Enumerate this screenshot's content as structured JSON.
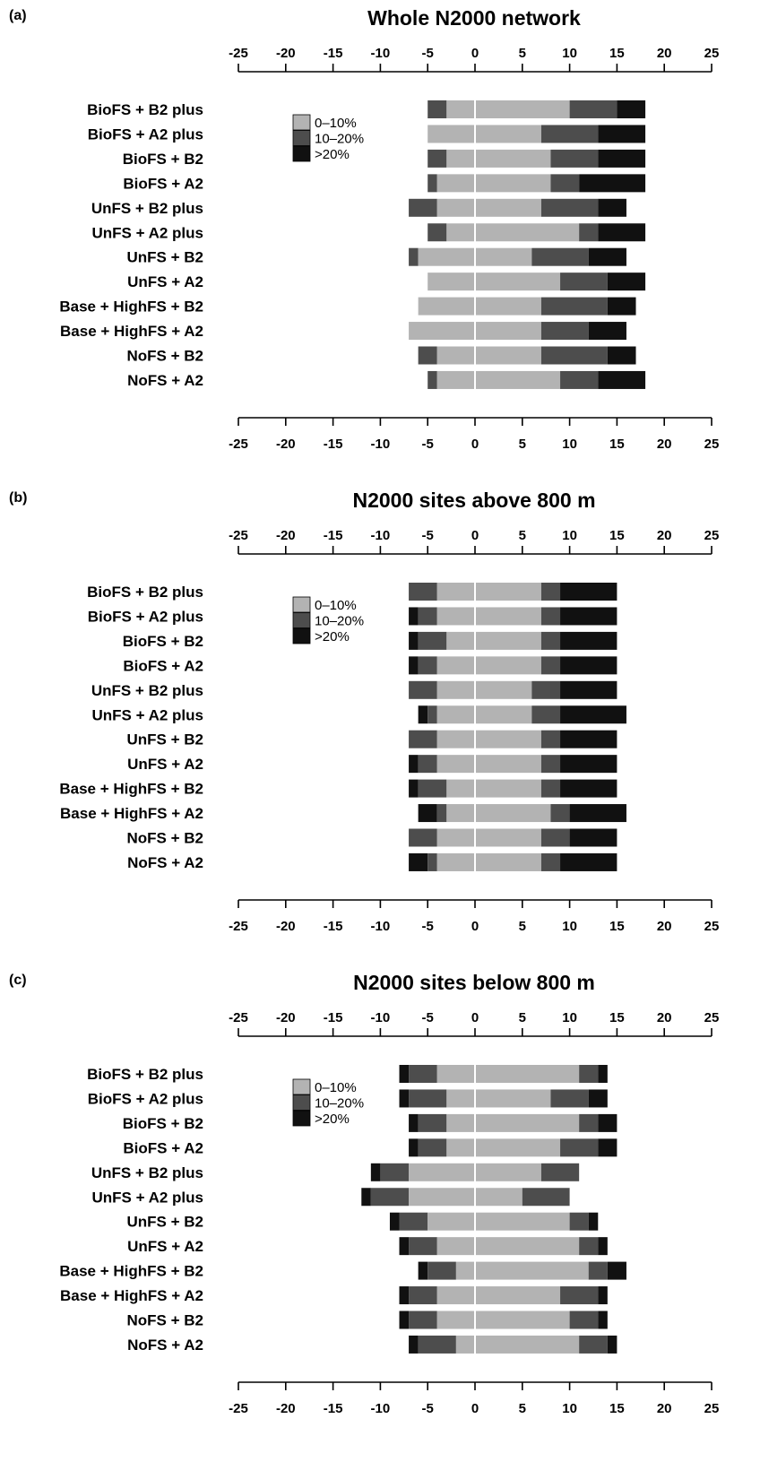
{
  "chart_data": [
    {
      "type": "bar",
      "panel_label": "(a)",
      "title": "Whole N2000 network",
      "xlim": [
        -25,
        25
      ],
      "xticks": [
        "-25",
        "-20",
        "-15",
        "-10",
        "-5",
        "0",
        "5",
        "10",
        "15",
        "20",
        "25"
      ],
      "legend": {
        "placement": "top-left",
        "entries": [
          "0–10%",
          "10–20%",
          ">20%"
        ],
        "colors": [
          "#b3b3b3",
          "#4d4d4d",
          "#111111"
        ]
      },
      "categories": [
        "BioFS + B2 plus",
        "BioFS + A2 plus",
        "BioFS + B2",
        "BioFS + A2",
        "UnFS + B2 plus",
        "UnFS + A2 plus",
        "UnFS + B2",
        "UnFS + A2",
        "Base + HighFS + B2",
        "Base + HighFS + A2",
        "NoFS + B2",
        "NoFS + A2"
      ],
      "bars": [
        {
          "neg": [
            -3,
            -5,
            -5
          ],
          "pos": [
            10,
            15,
            18
          ]
        },
        {
          "neg": [
            -5,
            -5,
            -5
          ],
          "pos": [
            7,
            13,
            18
          ]
        },
        {
          "neg": [
            -3,
            -5,
            -5
          ],
          "pos": [
            8,
            13,
            18
          ]
        },
        {
          "neg": [
            -4,
            -5,
            -5
          ],
          "pos": [
            8,
            11,
            18
          ]
        },
        {
          "neg": [
            -4,
            -7,
            -7
          ],
          "pos": [
            7,
            13,
            16
          ]
        },
        {
          "neg": [
            -3,
            -5,
            -5
          ],
          "pos": [
            11,
            13,
            18
          ]
        },
        {
          "neg": [
            -6,
            -7,
            -7
          ],
          "pos": [
            6,
            12,
            16
          ]
        },
        {
          "neg": [
            -5,
            -5,
            -5
          ],
          "pos": [
            9,
            14,
            18
          ]
        },
        {
          "neg": [
            -6,
            -6,
            -6
          ],
          "pos": [
            7,
            14,
            17
          ]
        },
        {
          "neg": [
            -7,
            -7,
            -7
          ],
          "pos": [
            7,
            12,
            16
          ]
        },
        {
          "neg": [
            -4,
            -6,
            -6
          ],
          "pos": [
            7,
            14,
            17
          ]
        },
        {
          "neg": [
            -4,
            -5,
            -5
          ],
          "pos": [
            9,
            13,
            18
          ]
        }
      ]
    },
    {
      "type": "bar",
      "panel_label": "(b)",
      "title": "N2000 sites above 800 m",
      "xlim": [
        -25,
        25
      ],
      "xticks": [
        "-25",
        "-20",
        "-15",
        "-10",
        "-5",
        "0",
        "5",
        "10",
        "15",
        "20",
        "25"
      ],
      "legend": {
        "placement": "top-left",
        "entries": [
          "0–10%",
          "10–20%",
          ">20%"
        ],
        "colors": [
          "#b3b3b3",
          "#4d4d4d",
          "#111111"
        ]
      },
      "categories": [
        "BioFS + B2 plus",
        "BioFS + A2 plus",
        "BioFS + B2",
        "BioFS + A2",
        "UnFS + B2 plus",
        "UnFS + A2 plus",
        "UnFS + B2",
        "UnFS + A2",
        "Base + HighFS + B2",
        "Base + HighFS + A2",
        "NoFS + B2",
        "NoFS + A2"
      ],
      "bars": [
        {
          "neg": [
            -4,
            -7,
            -7
          ],
          "pos": [
            7,
            9,
            15
          ]
        },
        {
          "neg": [
            -4,
            -6,
            -7
          ],
          "pos": [
            7,
            9,
            15
          ]
        },
        {
          "neg": [
            -3,
            -6,
            -7
          ],
          "pos": [
            7,
            9,
            15
          ]
        },
        {
          "neg": [
            -4,
            -6,
            -7
          ],
          "pos": [
            7,
            9,
            15
          ]
        },
        {
          "neg": [
            -4,
            -7,
            -7
          ],
          "pos": [
            6,
            9,
            15
          ]
        },
        {
          "neg": [
            -4,
            -5,
            -6
          ],
          "pos": [
            6,
            9,
            16
          ]
        },
        {
          "neg": [
            -4,
            -7,
            -7
          ],
          "pos": [
            7,
            9,
            15
          ]
        },
        {
          "neg": [
            -4,
            -6,
            -7
          ],
          "pos": [
            7,
            9,
            15
          ]
        },
        {
          "neg": [
            -3,
            -6,
            -7
          ],
          "pos": [
            7,
            9,
            15
          ]
        },
        {
          "neg": [
            -3,
            -4,
            -6
          ],
          "pos": [
            8,
            10,
            16
          ]
        },
        {
          "neg": [
            -4,
            -7,
            -7
          ],
          "pos": [
            7,
            10,
            15
          ]
        },
        {
          "neg": [
            -4,
            -5,
            -7
          ],
          "pos": [
            7,
            9,
            15
          ]
        }
      ]
    },
    {
      "type": "bar",
      "panel_label": "(c)",
      "title": "N2000 sites below 800 m",
      "xlim": [
        -25,
        25
      ],
      "xticks": [
        "-25",
        "-20",
        "-15",
        "-10",
        "-5",
        "0",
        "5",
        "10",
        "15",
        "20",
        "25"
      ],
      "legend": {
        "placement": "top-left",
        "entries": [
          "0–10%",
          "10–20%",
          ">20%"
        ],
        "colors": [
          "#b3b3b3",
          "#4d4d4d",
          "#111111"
        ]
      },
      "categories": [
        "BioFS + B2 plus",
        "BioFS + A2 plus",
        "BioFS + B2",
        "BioFS + A2",
        "UnFS + B2 plus",
        "UnFS + A2 plus",
        "UnFS + B2",
        "UnFS + A2",
        "Base + HighFS + B2",
        "Base + HighFS + A2",
        "NoFS + B2",
        "NoFS + A2"
      ],
      "bars": [
        {
          "neg": [
            -4,
            -7,
            -8
          ],
          "pos": [
            11,
            13,
            14
          ]
        },
        {
          "neg": [
            -3,
            -7,
            -8
          ],
          "pos": [
            8,
            12,
            14
          ]
        },
        {
          "neg": [
            -3,
            -6,
            -7
          ],
          "pos": [
            11,
            13,
            15
          ]
        },
        {
          "neg": [
            -3,
            -6,
            -7
          ],
          "pos": [
            9,
            13,
            15
          ]
        },
        {
          "neg": [
            -7,
            -10,
            -11
          ],
          "pos": [
            7,
            11,
            11
          ]
        },
        {
          "neg": [
            -7,
            -11,
            -12
          ],
          "pos": [
            5,
            10,
            10
          ]
        },
        {
          "neg": [
            -5,
            -8,
            -9
          ],
          "pos": [
            10,
            12,
            13
          ]
        },
        {
          "neg": [
            -4,
            -7,
            -8
          ],
          "pos": [
            11,
            13,
            14
          ]
        },
        {
          "neg": [
            -2,
            -5,
            -6
          ],
          "pos": [
            12,
            14,
            16
          ]
        },
        {
          "neg": [
            -4,
            -7,
            -8
          ],
          "pos": [
            9,
            13,
            14
          ]
        },
        {
          "neg": [
            -4,
            -7,
            -8
          ],
          "pos": [
            10,
            13,
            14
          ]
        },
        {
          "neg": [
            -2,
            -6,
            -7
          ],
          "pos": [
            11,
            14,
            15
          ]
        }
      ]
    }
  ]
}
